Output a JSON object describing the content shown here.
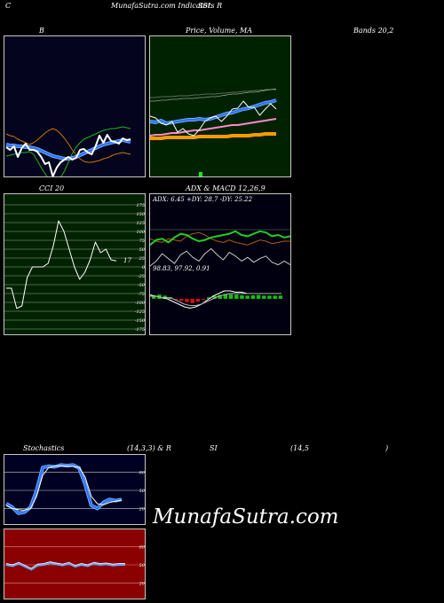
{
  "header": {
    "left": "C",
    "center": "MunafaSutra.com Indicators R",
    "right": "SSL"
  },
  "titles": {
    "bollinger": "B",
    "price": "Price,  Volume,  MA",
    "bands": "Bands 20,2",
    "cci": "CCI 20",
    "adx_macd": "ADX  & MACD 12,26,9",
    "stoch_left": "Stochastics",
    "stoch_params": "(14,3,3) & R",
    "rsi_si": "SI",
    "rsi_params": "(14,5",
    "rsi_close": ")"
  },
  "panel_labels": {
    "adx_values": "ADX: 6.45  +DY: 28.7  -DY: 25.22",
    "macd_values": "98.83,   97.92,   0.91",
    "cci_current": "17"
  },
  "watermark": "MunafaSutra.com",
  "colors": {
    "bollinger_bg": "#04041e",
    "price_bg": "#002200",
    "cci_bg": "#002200",
    "adx_bg": "#000010",
    "stoch_bg": "#000022",
    "rsi_bg": "#8b0000",
    "band_upper": "#1fb31f",
    "band_lower": "#c87800",
    "band_middle": "#2f6fff",
    "price_line": "#ffffff",
    "ma_orange": "#ff9900",
    "ma_pink": "#ff88cc",
    "adx_plus": "#20d020",
    "adx_minus": "#b05a10",
    "macd_up": "#10c010",
    "macd_down": "#d01010",
    "stoch_k": "#2f6fff"
  },
  "chart_data": [
    {
      "name": "bollinger",
      "type": "line",
      "series": [
        {
          "values": [
            135,
            134,
            133,
            132,
            131,
            131,
            130,
            133,
            140,
            148,
            155,
            161,
            164,
            163,
            159,
            152,
            142,
            132,
            125,
            120,
            116,
            114,
            112,
            110,
            108,
            106,
            105,
            104,
            104,
            103,
            102,
            103,
            104
          ]
        },
        {
          "values": [
            122,
            123,
            123,
            124,
            124,
            125,
            125,
            126,
            127,
            129,
            131,
            133,
            135,
            136,
            137,
            138,
            138,
            137,
            136,
            134,
            132,
            130,
            128,
            126,
            124,
            122,
            121,
            120,
            119,
            118,
            117,
            118,
            119
          ]
        },
        {
          "values": [
            110,
            112,
            113,
            116,
            118,
            120,
            122,
            120,
            117,
            113,
            109,
            106,
            104,
            106,
            110,
            115,
            121,
            128,
            134,
            138,
            141,
            142,
            142,
            141,
            140,
            138,
            137,
            135,
            133,
            132,
            131,
            132,
            133
          ]
        },
        {
          "values": [
            125,
            128,
            124,
            136,
            126,
            121,
            128,
            128,
            130,
            136,
            144,
            142,
            158,
            148,
            142,
            139,
            136,
            139,
            137,
            128,
            127,
            131,
            133,
            124,
            112,
            120,
            111,
            118,
            119,
            121,
            115,
            117,
            116
          ]
        }
      ]
    },
    {
      "name": "price_volume_ma",
      "type": "line",
      "series": [
        {
          "values": [
            126,
            127,
            125,
            128,
            127,
            126,
            125,
            124,
            124,
            123,
            124,
            123,
            121,
            119,
            117,
            116,
            114,
            112,
            111,
            109,
            107,
            105,
            104,
            102
          ]
        },
        {
          "values": [
            142,
            141,
            141,
            140,
            139,
            139,
            138,
            137,
            136,
            136,
            135,
            134,
            133,
            132,
            131,
            130,
            130,
            129,
            128,
            127,
            126,
            125,
            124,
            123
          ]
        },
        {
          "values": [
            145,
            145,
            145,
            144,
            144,
            144,
            144,
            144,
            144,
            143,
            143,
            143,
            143,
            143,
            143,
            142,
            142,
            142,
            142,
            141,
            141,
            140,
            140,
            140
          ]
        },
        {
          "values": [
            120,
            122,
            128,
            130,
            126,
            138,
            134,
            140,
            142,
            135,
            126,
            122,
            120,
            126,
            120,
            112,
            111,
            103,
            110,
            110,
            119,
            112,
            106,
            112
          ]
        }
      ]
    },
    {
      "name": "cci",
      "type": "line",
      "ylim": [
        -175,
        175
      ],
      "ticks": [
        175,
        150,
        125,
        100,
        75,
        50,
        25,
        0,
        -25,
        -50,
        -75,
        -100,
        -125,
        -150,
        -175
      ],
      "values": [
        -60,
        -60,
        -117,
        -110,
        -30,
        0,
        0,
        0,
        10,
        60,
        130,
        100,
        50,
        0,
        -35,
        -15,
        20,
        70,
        40,
        50,
        20,
        17
      ]
    },
    {
      "name": "adx",
      "type": "line",
      "series": [
        {
          "values": [
            22,
            26,
            27,
            24,
            28,
            31,
            30,
            27,
            25,
            26,
            28,
            29,
            30,
            31,
            33,
            30,
            29,
            31,
            33,
            32,
            29,
            30,
            28,
            29
          ]
        },
        {
          "values": [
            27,
            25,
            24,
            27,
            26,
            25,
            29,
            31,
            32,
            30,
            27,
            25,
            24,
            26,
            24,
            23,
            22,
            24,
            26,
            25,
            23,
            24,
            25,
            25
          ]
        },
        {
          "values": [
            5,
            9,
            15,
            11,
            7,
            14,
            17,
            12,
            9,
            15,
            19,
            14,
            10,
            16,
            13,
            9,
            12,
            8,
            11,
            13,
            8,
            6,
            9,
            6
          ]
        }
      ]
    },
    {
      "name": "macd",
      "type": "bar",
      "values": [
        1.0,
        1.2,
        0.9,
        0.5,
        -0.3,
        -0.6,
        -0.9,
        -1.2,
        -0.8,
        -0.3,
        0.4,
        0.8,
        1.1,
        1.4,
        1.3,
        1.2,
        1.0,
        0.9,
        1.0,
        1.1,
        0.9,
        0.9,
        0.9,
        0.91
      ]
    },
    {
      "name": "stochastics",
      "type": "line",
      "ylim": [
        0,
        100
      ],
      "ticks": [
        80,
        50,
        20
      ],
      "series": [
        {
          "values": [
            28,
            22,
            12,
            14,
            22,
            50,
            88,
            90,
            89,
            92,
            91,
            92,
            87,
            60,
            25,
            20,
            30,
            35,
            33,
            35
          ]
        },
        {
          "values": [
            25,
            20,
            18,
            17,
            20,
            40,
            75,
            88,
            90,
            91,
            90,
            90,
            88,
            72,
            40,
            28,
            26,
            30,
            32,
            34
          ]
        }
      ]
    },
    {
      "name": "rsi",
      "type": "line",
      "ylim": [
        0,
        100
      ],
      "ticks": [
        80,
        50,
        20
      ],
      "values": [
        50,
        48,
        52,
        47,
        42,
        49,
        50,
        53,
        51,
        49,
        52,
        47,
        50,
        48,
        52,
        50,
        51,
        49,
        50,
        50
      ]
    }
  ]
}
